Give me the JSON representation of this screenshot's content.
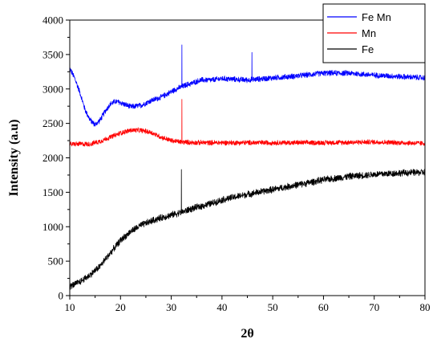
{
  "chart_data": {
    "type": "line",
    "xlabel": "2θ",
    "ylabel": "Intensity (a.u)",
    "xlim": [
      10,
      80
    ],
    "ylim": [
      0,
      4000
    ],
    "x_ticks": [
      "10",
      "20",
      "30",
      "40",
      "50",
      "60",
      "70",
      "80"
    ],
    "y_ticks": [
      "0",
      "500",
      "1000",
      "1500",
      "2000",
      "2500",
      "3000",
      "3500",
      "4000"
    ],
    "grid": false,
    "legend_position": "top-right",
    "series": [
      {
        "name": "Fe Mn",
        "color": "#0000ff",
        "noise": 45,
        "x": [
          10,
          11,
          12,
          13,
          14,
          15,
          16,
          17,
          18,
          19,
          20,
          22,
          24,
          26,
          28,
          30,
          31,
          32,
          33,
          34,
          35,
          36,
          38,
          40,
          45,
          50,
          55,
          60,
          65,
          70,
          75,
          80
        ],
        "y": [
          3300,
          3150,
          2950,
          2700,
          2550,
          2480,
          2550,
          2680,
          2780,
          2820,
          2800,
          2740,
          2760,
          2830,
          2880,
          2960,
          3000,
          3030,
          3060,
          3080,
          3110,
          3130,
          3130,
          3150,
          3130,
          3160,
          3190,
          3230,
          3230,
          3200,
          3180,
          3160
        ],
        "peaks": [
          {
            "x": 32.1,
            "y": 3640
          },
          {
            "x": 45.9,
            "y": 3530
          }
        ]
      },
      {
        "name": "Mn",
        "color": "#ff0000",
        "noise": 40,
        "x": [
          10,
          14,
          16,
          18,
          20,
          22,
          24,
          26,
          28,
          30,
          32,
          35,
          40,
          50,
          60,
          70,
          80
        ],
        "y": [
          2200,
          2200,
          2240,
          2300,
          2360,
          2400,
          2400,
          2370,
          2300,
          2250,
          2230,
          2220,
          2220,
          2220,
          2220,
          2230,
          2210
        ],
        "peaks": [
          {
            "x": 32.1,
            "y": 2850
          }
        ]
      },
      {
        "name": "Fe",
        "color": "#000000",
        "noise": 55,
        "x": [
          10,
          12,
          14,
          16,
          18,
          20,
          22,
          24,
          26,
          28,
          30,
          32,
          34,
          36,
          38,
          40,
          45,
          50,
          55,
          60,
          65,
          70,
          75,
          80
        ],
        "y": [
          130,
          200,
          300,
          430,
          620,
          800,
          930,
          1020,
          1080,
          1130,
          1170,
          1210,
          1260,
          1300,
          1340,
          1390,
          1470,
          1540,
          1610,
          1680,
          1730,
          1760,
          1780,
          1790
        ],
        "peaks": [
          {
            "x": 32.0,
            "y": 1830
          }
        ]
      }
    ]
  }
}
